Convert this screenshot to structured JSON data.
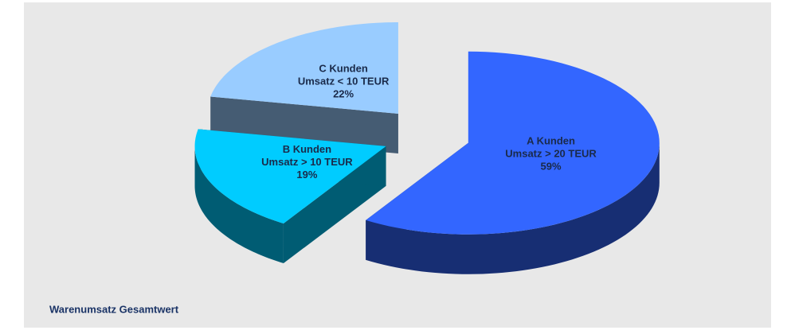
{
  "chart_data": {
    "type": "pie",
    "title": "Warenumsatz Gesamtwert",
    "categories": [
      "A Kunden",
      "B Kunden",
      "C Kunden"
    ],
    "descriptions": [
      "Umsatz > 20 TEUR",
      "Umsatz > 10 TEUR",
      "Umsatz < 10 TEUR"
    ],
    "values": [
      59,
      19,
      22
    ],
    "value_labels": [
      "59%",
      "19%",
      "22%"
    ],
    "colors": [
      "#3366ff",
      "#00ccff",
      "#99ccff"
    ],
    "three_d": true,
    "exploded": true
  }
}
